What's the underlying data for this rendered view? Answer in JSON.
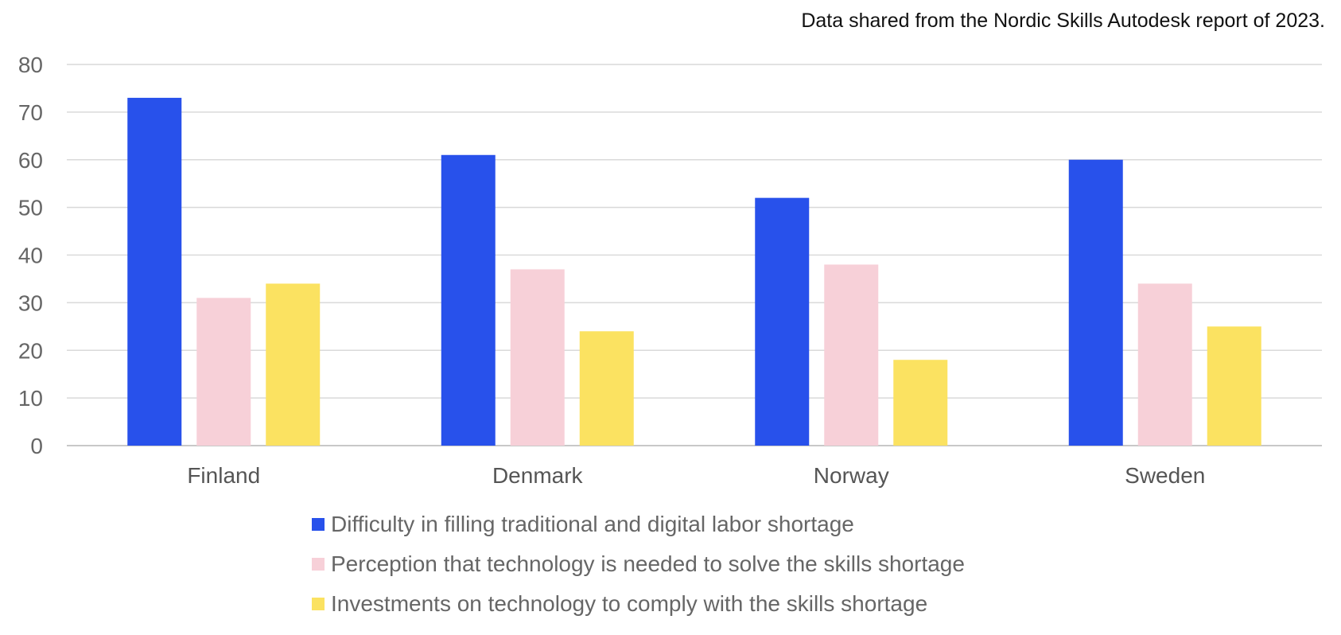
{
  "note": "Data shared from the Nordic Skills Autodesk report of 2023.",
  "chart_data": {
    "type": "bar",
    "title": "",
    "xlabel": "",
    "ylabel": "",
    "ylim": [
      0,
      80
    ],
    "yticks": [
      "0",
      "10",
      "20",
      "30",
      "40",
      "50",
      "60",
      "70",
      "80"
    ],
    "grid": true,
    "legend_position": "bottom",
    "categories": [
      "Finland",
      "Denmark",
      "Norway",
      "Sweden"
    ],
    "series": [
      {
        "name": "Difficulty in filling traditional and digital labor shortage",
        "color": "#2851EB",
        "values": [
          73,
          61,
          52,
          60
        ]
      },
      {
        "name": "Perception that technology is needed to solve the skills shortage",
        "color": "#F7D0D8",
        "values": [
          31,
          37,
          38,
          34
        ]
      },
      {
        "name": "Investments on technology to comply with the skills shortage",
        "color": "#FBE261",
        "values": [
          34,
          24,
          18,
          25
        ]
      }
    ]
  }
}
